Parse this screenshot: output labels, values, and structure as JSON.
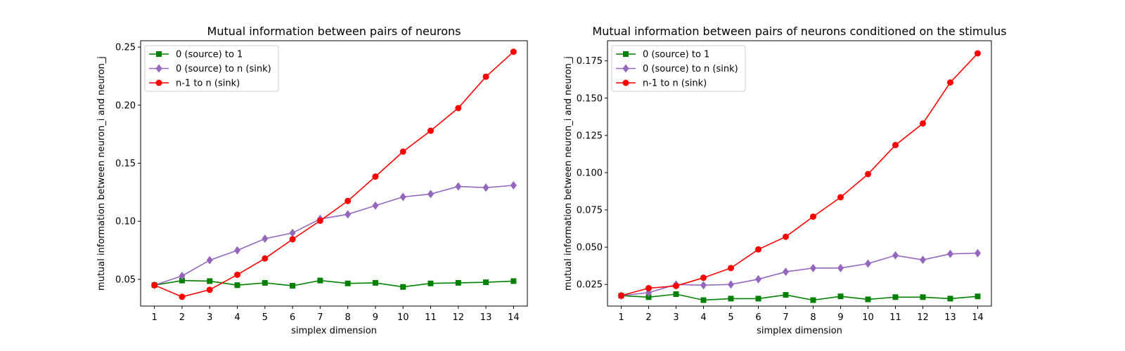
{
  "chart_data": [
    {
      "type": "line",
      "title": "Mutual information between pairs of neurons",
      "xlabel": "simplex dimension",
      "ylabel": "mutual information between neuron_i and neuron_j",
      "x": [
        1,
        2,
        3,
        4,
        5,
        6,
        7,
        8,
        9,
        10,
        11,
        12,
        13,
        14
      ],
      "xlim": [
        0.5,
        14.5
      ],
      "ylim": [
        0.027,
        0.2555
      ],
      "yticks": [
        "0.05",
        "0.10",
        "0.15",
        "0.20",
        "0.25"
      ],
      "grid": false,
      "legend_position": "upper-left",
      "series": [
        {
          "name": "0 (source) to 1",
          "color": "#008000",
          "marker": "square",
          "values": [
            0.045,
            0.049,
            0.0485,
            0.045,
            0.047,
            0.0445,
            0.049,
            0.0465,
            0.047,
            0.0435,
            0.0465,
            0.047,
            0.0475,
            0.0485
          ]
        },
        {
          "name": "0 (source) to n (sink)",
          "color": "#9467bd",
          "marker": "diamond",
          "values": [
            0.045,
            0.053,
            0.0665,
            0.075,
            0.085,
            0.09,
            0.102,
            0.106,
            0.1135,
            0.121,
            0.1235,
            0.13,
            0.129,
            0.131
          ]
        },
        {
          "name": "n-1 to n (sink)",
          "color": "#ff0000",
          "marker": "circle",
          "values": [
            0.045,
            0.035,
            0.041,
            0.054,
            0.068,
            0.0845,
            0.1005,
            0.1175,
            0.1385,
            0.16,
            0.178,
            0.1975,
            0.2245,
            0.246
          ]
        }
      ]
    },
    {
      "type": "line",
      "title": "Mutual information between pairs of neurons conditioned on the stimulus",
      "xlabel": "simplex dimension",
      "ylabel": "mutual information between neuron_i and neuron_j",
      "x": [
        1,
        2,
        3,
        4,
        5,
        6,
        7,
        8,
        9,
        10,
        11,
        12,
        13,
        14
      ],
      "xlim": [
        0.5,
        14.5
      ],
      "ylim": [
        0.0105,
        0.1885
      ],
      "yticks": [
        "0.025",
        "0.050",
        "0.075",
        "0.100",
        "0.125",
        "0.150",
        "0.175"
      ],
      "grid": false,
      "legend_position": "upper-left",
      "series": [
        {
          "name": "0 (source) to 1",
          "color": "#008000",
          "marker": "square",
          "values": [
            0.0175,
            0.0165,
            0.0185,
            0.0145,
            0.0155,
            0.0155,
            0.018,
            0.0145,
            0.017,
            0.015,
            0.0165,
            0.0165,
            0.0155,
            0.017
          ]
        },
        {
          "name": "0 (source) to n (sink)",
          "color": "#9467bd",
          "marker": "diamond",
          "values": [
            0.0175,
            0.0195,
            0.025,
            0.0245,
            0.025,
            0.0285,
            0.0335,
            0.036,
            0.036,
            0.039,
            0.0445,
            0.0415,
            0.0455,
            0.046
          ]
        },
        {
          "name": "n-1 to n (sink)",
          "color": "#ff0000",
          "marker": "circle",
          "values": [
            0.0175,
            0.0225,
            0.024,
            0.0295,
            0.036,
            0.0485,
            0.057,
            0.0705,
            0.0835,
            0.099,
            0.1185,
            0.133,
            0.1605,
            0.18
          ]
        }
      ]
    }
  ]
}
